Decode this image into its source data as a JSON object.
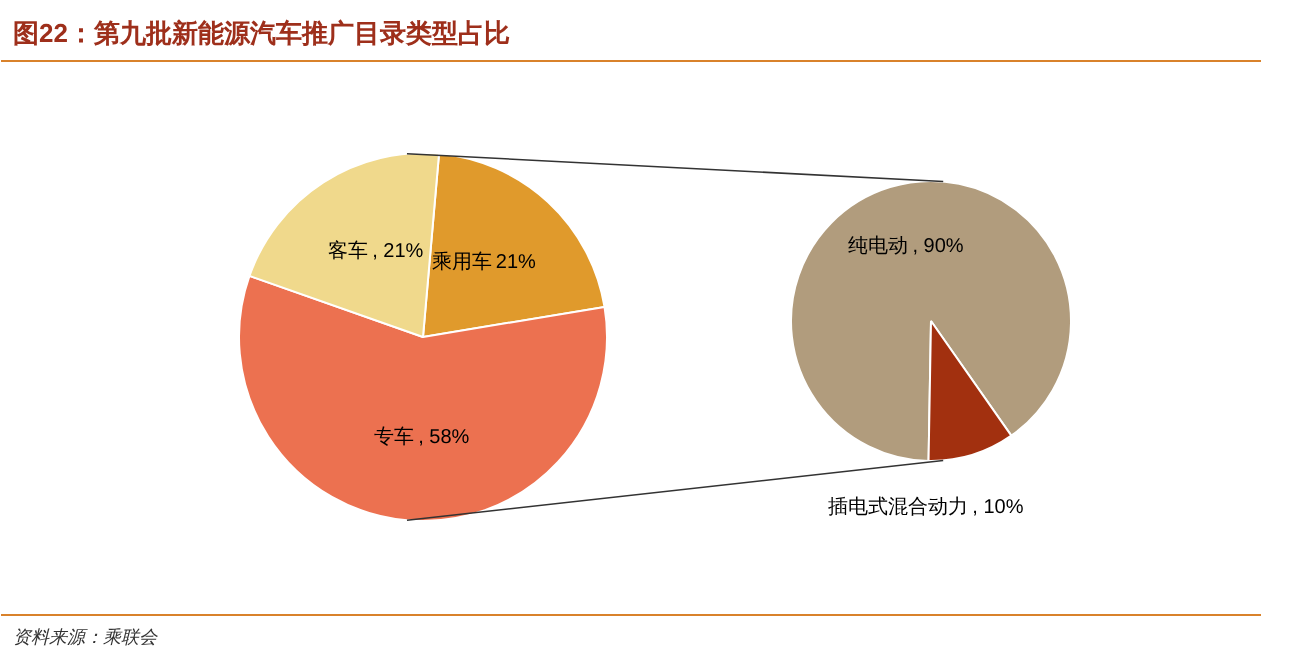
{
  "chart_data": [
    {
      "type": "pie",
      "title": "图22：第九批新能源汽车推广目录类型占比",
      "annotations": [
        "资料来源：乘联会"
      ],
      "categories": [
        "乘用车",
        "专车",
        "客车"
      ],
      "values": [
        21,
        58,
        21
      ],
      "colors": [
        "#e09a2c",
        "#ec7150",
        "#f0d98c"
      ],
      "value_labels": [
        "21%",
        ", 58%",
        ", 21%"
      ]
    },
    {
      "type": "pie",
      "categories": [
        "纯电动",
        "插电式混合动力"
      ],
      "values": [
        90,
        10
      ],
      "colors": [
        "#b19c7d",
        "#a2300f"
      ],
      "value_labels": [
        ", 90%",
        ", 10%"
      ]
    }
  ]
}
